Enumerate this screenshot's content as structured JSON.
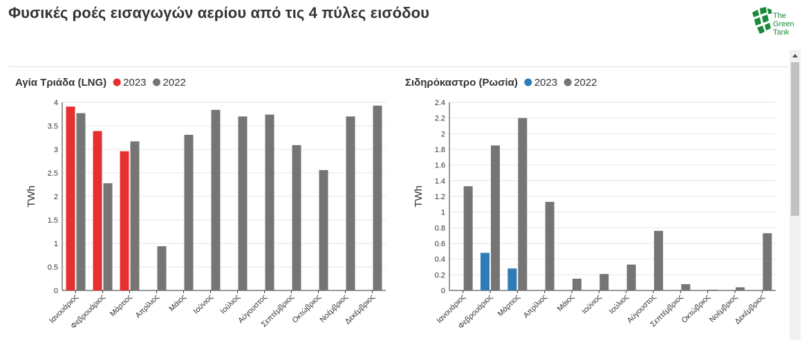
{
  "page": {
    "title": "Φυσικές ροές εισαγωγών αερίου από τις 4 πύλες εισόδου",
    "logo": {
      "lines": [
        "The",
        "Green",
        "Tank"
      ],
      "icon": "green-globe-icon",
      "color": "#1a8a3a"
    }
  },
  "colors": {
    "red": "#e63030",
    "blue": "#2f7bb6",
    "grey": "#757575"
  },
  "chart_data": [
    {
      "type": "bar",
      "title": "Αγία Τριάδα (LNG)",
      "ylabel": "TWh",
      "ylim": [
        0,
        4
      ],
      "yticks": [
        0,
        0.5,
        1,
        1.5,
        2,
        2.5,
        3,
        3.5,
        4
      ],
      "grid": true,
      "legend_position": "top-left",
      "categories": [
        "Ιανουάριος",
        "Φεβρουάριος",
        "Μάρτιος",
        "Απρίλιος",
        "Μάιος",
        "Ιούνιος",
        "Ιούλιος",
        "Αύγουστος",
        "Σεπτέμβριος",
        "Οκτώβριος",
        "Νοέμβριος",
        "Δεκέμβριος"
      ],
      "series": [
        {
          "name": "2023",
          "color": "#e63030",
          "values": [
            3.91,
            3.39,
            2.96,
            null,
            null,
            null,
            null,
            null,
            null,
            null,
            null,
            null
          ]
        },
        {
          "name": "2022",
          "color": "#757575",
          "values": [
            3.77,
            2.28,
            3.17,
            0.94,
            3.31,
            3.84,
            3.7,
            3.74,
            3.09,
            2.56,
            3.7,
            3.93
          ]
        }
      ]
    },
    {
      "type": "bar",
      "title": "Σιδηρόκαστρο (Ρωσία)",
      "ylabel": "TWh",
      "ylim": [
        0,
        2.4
      ],
      "yticks": [
        0,
        0.2,
        0.4,
        0.6,
        0.8,
        1,
        1.2,
        1.4,
        1.6,
        1.8,
        2,
        2.2,
        2.4
      ],
      "grid": true,
      "legend_position": "top-left",
      "categories": [
        "Ιανουάριος",
        "Φεβρουάριος",
        "Μάρτιος",
        "Απρίλιος",
        "Μάιος",
        "Ιούνιος",
        "Ιούλιος",
        "Αύγουστος",
        "Σεπτέμβριος",
        "Οκτώβριος",
        "Νοέμβριος",
        "Δεκέμβριος"
      ],
      "series": [
        {
          "name": "2023",
          "color": "#2f7bb6",
          "values": [
            null,
            0.48,
            0.28,
            null,
            null,
            null,
            null,
            null,
            null,
            null,
            null,
            null
          ]
        },
        {
          "name": "2022",
          "color": "#757575",
          "values": [
            1.33,
            1.85,
            2.2,
            1.13,
            0.15,
            0.21,
            0.33,
            0.76,
            0.08,
            0.01,
            0.04,
            0.73
          ]
        }
      ]
    }
  ]
}
